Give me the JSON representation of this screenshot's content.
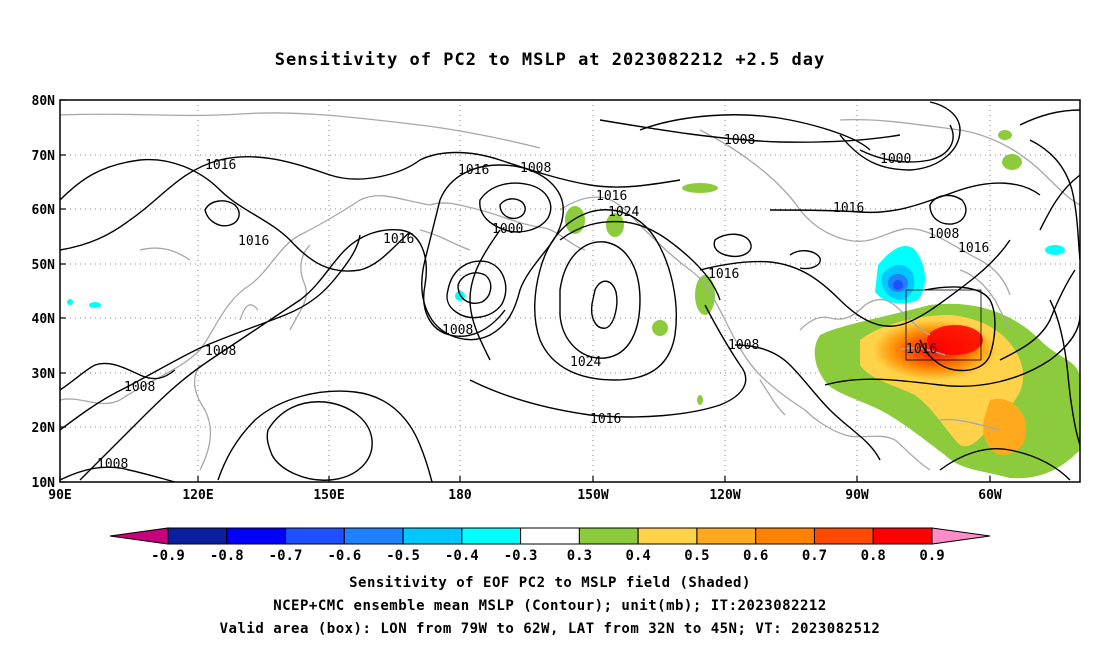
{
  "title": "Sensitivity of PC2 to MSLP at 2023082212 +2.5 day",
  "map": {
    "lon_range": [
      "90E",
      "50W"
    ],
    "lat_range": [
      "10N",
      "80N"
    ],
    "x_ticks": [
      "90E",
      "120E",
      "150E",
      "180",
      "150W",
      "120W",
      "90W",
      "60W"
    ],
    "y_ticks": [
      "10N",
      "20N",
      "30N",
      "40N",
      "50N",
      "60N",
      "70N",
      "80N"
    ],
    "grid": "dotted",
    "contour_labels": [
      "1016",
      "1016",
      "1016",
      "1016",
      "1008",
      "1000",
      "1016",
      "1024",
      "1016",
      "1008",
      "1016",
      "1008",
      "1016",
      "1016",
      "1008",
      "1008",
      "1008",
      "1008",
      "1024",
      "1016",
      "1008",
      "1016",
      "1000",
      "1008"
    ],
    "valid_box": {
      "lon": [
        "79W",
        "62W"
      ],
      "lat": [
        "32N",
        "45N"
      ],
      "label": "1016"
    }
  },
  "colorbar": {
    "labels": [
      "-0.9",
      "-0.8",
      "-0.7",
      "-0.6",
      "-0.5",
      "-0.4",
      "-0.3",
      "0.3",
      "0.4",
      "0.5",
      "0.6",
      "0.7",
      "0.8",
      "0.9"
    ],
    "colors": [
      "#c8007a",
      "#0a1ea0",
      "#0000ff",
      "#1e50ff",
      "#1e82ff",
      "#00c8ff",
      "#00ffff",
      "#ffffff",
      "#8ccc3c",
      "#ffd24a",
      "#ffaa1e",
      "#ff8200",
      "#ff4a00",
      "#ff0000",
      "#ff8cc8"
    ]
  },
  "captions": [
    "Sensitivity of EOF PC2 to MSLP field (Shaded)",
    "NCEP+CMC ensemble mean MSLP (Contour); unit(mb); IT:2023082212",
    "Valid area (box): LON from 79W to 62W, LAT from 32N to 45N; VT: 2023082512"
  ]
}
